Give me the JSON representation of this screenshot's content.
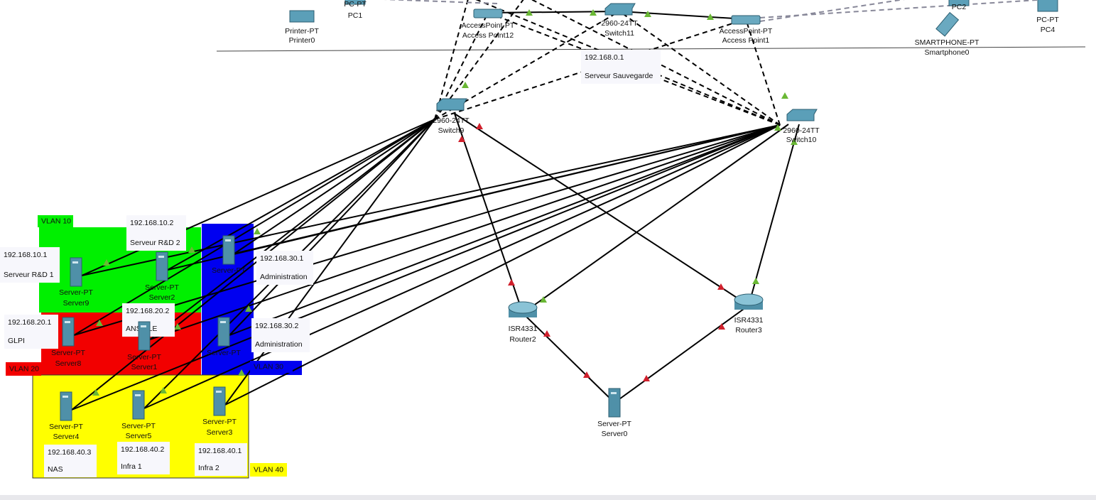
{
  "nodes": [
    {
      "model": "Printer-PT",
      "name": "Printer0"
    },
    {
      "model": "AccessPoint-PT",
      "name": "Access Point12"
    },
    {
      "model": "2960-24TT",
      "name": "Switch11"
    },
    {
      "model": "AccessPoint-PT",
      "name": "Access Point1"
    },
    {
      "model": "PC-PT",
      "name": "PC1"
    },
    {
      "name": "PC2"
    },
    {
      "model": "SMARTPHONE-PT",
      "name": "Smartphone0"
    },
    {
      "model": "PC-PT",
      "name": "PC4"
    },
    {
      "model": "2960-24TT",
      "name": "Switch9"
    },
    {
      "model": "2960-24TT",
      "name": "Switch10"
    },
    {
      "model": "ISR4331",
      "name": "Router2"
    },
    {
      "model": "ISR4331",
      "name": "Router3"
    },
    {
      "model": "Server-PT",
      "name": "Server0"
    },
    {
      "model": "Server-PT",
      "name": "Server9"
    },
    {
      "model": "Server-PT",
      "name": "Server2"
    },
    {
      "model": "Server-PT"
    },
    {
      "model": "Server-PT",
      "name": "Server8"
    },
    {
      "model": "Server-PT",
      "name": "Server1"
    },
    {
      "model": "Server-PT"
    },
    {
      "model": "Server-PT",
      "name": "Server4"
    },
    {
      "model": "Server-PT",
      "name": "Server5"
    },
    {
      "model": "Server-PT",
      "name": "Server3"
    }
  ],
  "notes": [
    {
      "ip": "192.168.0.1",
      "desc": "Serveur Sauvegarde"
    },
    {
      "ip": "192.168.10.2",
      "desc": "Serveur R&D 2"
    },
    {
      "ip": "192.168.10.1",
      "desc": "Serveur R&D 1"
    },
    {
      "ip": "192.168.30.1",
      "desc": "Administration"
    },
    {
      "ip": "192.168.20.2",
      "desc": "ANSIBLE"
    },
    {
      "ip": "192.168.20.1",
      "desc": "GLPI"
    },
    {
      "ip": "192.168.30.2",
      "desc": "Administration"
    },
    {
      "ip": "192.168.40.3",
      "desc": "NAS"
    },
    {
      "ip": "192.168.40.2",
      "desc": "Infra 1"
    },
    {
      "ip": "192.168.40.1",
      "desc": "Infra 2"
    }
  ],
  "vlans": [
    "VLAN 10",
    "VLAN 20",
    "VLAN 30",
    "VLAN 40"
  ]
}
